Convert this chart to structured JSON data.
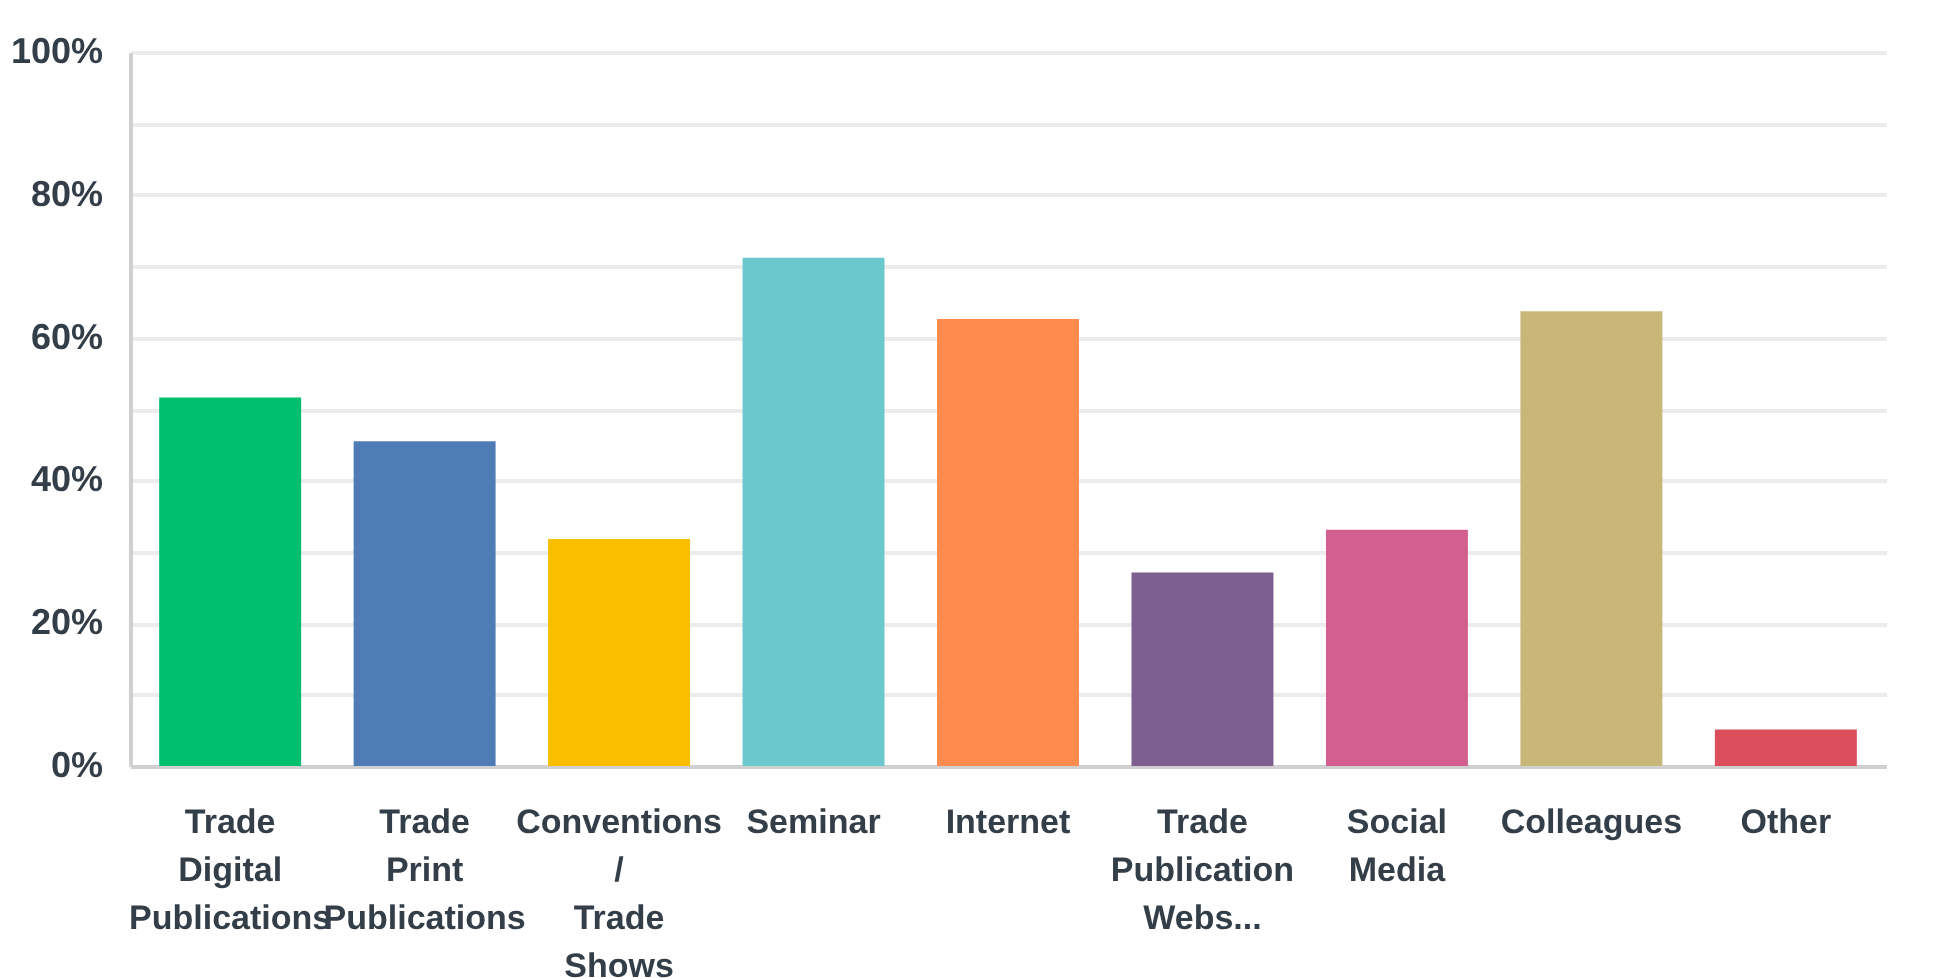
{
  "chart_data": {
    "type": "bar",
    "categories": [
      "Trade Digital Publications",
      "Trade Print Publications",
      "Conventions / Trade Shows",
      "Seminar",
      "Internet",
      "Trade Publication Webs...",
      "Social Media",
      "Colleagues",
      "Other"
    ],
    "values": [
      51.6,
      45.5,
      31.8,
      71.2,
      62.6,
      27.1,
      33.1,
      63.7,
      5.1
    ],
    "colors": [
      "#00bf6f",
      "#507cb6",
      "#f9be00",
      "#6bc8cd",
      "#ff8b4f",
      "#7f5f90",
      "#d25f90",
      "#c9b77a",
      "#dd4e5c"
    ],
    "ylim": [
      0,
      100
    ],
    "yticks": [
      {
        "value": 0,
        "label": "0%"
      },
      {
        "value": 10,
        "label": null
      },
      {
        "value": 20,
        "label": "20%"
      },
      {
        "value": 30,
        "label": null
      },
      {
        "value": 40,
        "label": "40%"
      },
      {
        "value": 50,
        "label": null
      },
      {
        "value": 60,
        "label": "60%"
      },
      {
        "value": 70,
        "label": null
      },
      {
        "value": 80,
        "label": "80%"
      },
      {
        "value": 90,
        "label": null
      },
      {
        "value": 100,
        "label": "100%"
      }
    ],
    "grid": true
  }
}
